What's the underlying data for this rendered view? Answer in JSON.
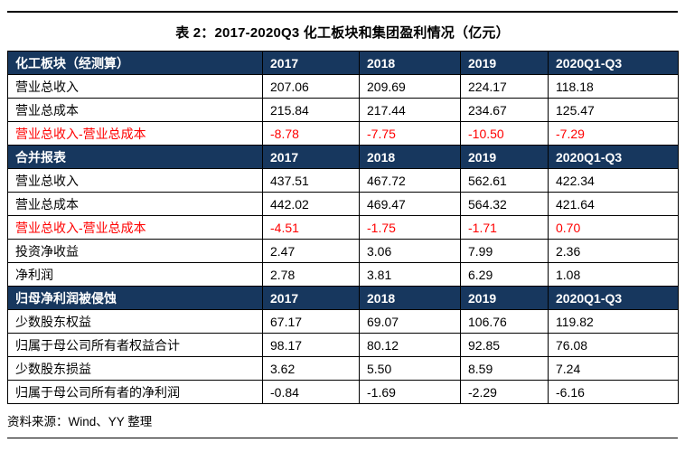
{
  "page": {
    "title": "表 2：2017-2020Q3 化工板块和集团盈利情况（亿元）",
    "source_note": "资料来源：Wind、YY 整理"
  },
  "colors": {
    "section_header_bg": "#17375e",
    "section_header_text": "#ffffff",
    "negative_highlight_text": "#ff0000",
    "grid_border": "#000000"
  },
  "table": {
    "year_columns": [
      "2017",
      "2018",
      "2019",
      "2020Q1-Q3"
    ],
    "sections": [
      {
        "header": "化工板块（经测算）",
        "rows": [
          {
            "label": "营业总收入",
            "values": [
              "207.06",
              "209.69",
              "224.17",
              "118.18"
            ],
            "red": false
          },
          {
            "label": "营业总成本",
            "values": [
              "215.84",
              "217.44",
              "234.67",
              "125.47"
            ],
            "red": false
          },
          {
            "label": "营业总收入-营业总成本",
            "values": [
              "-8.78",
              "-7.75",
              "-10.50",
              "-7.29"
            ],
            "red": true
          }
        ]
      },
      {
        "header": "合并报表",
        "rows": [
          {
            "label": "营业总收入",
            "values": [
              "437.51",
              "467.72",
              "562.61",
              "422.34"
            ],
            "red": false
          },
          {
            "label": "营业总成本",
            "values": [
              "442.02",
              "469.47",
              "564.32",
              "421.64"
            ],
            "red": false
          },
          {
            "label": "营业总收入-营业总成本",
            "values": [
              "-4.51",
              "-1.75",
              "-1.71",
              "0.70"
            ],
            "red": true
          },
          {
            "label": "投资净收益",
            "values": [
              "2.47",
              "3.06",
              "7.99",
              "2.36"
            ],
            "red": false
          },
          {
            "label": "净利润",
            "values": [
              "2.78",
              "3.81",
              "6.29",
              "1.08"
            ],
            "red": false
          }
        ]
      },
      {
        "header": "归母净利润被侵蚀",
        "rows": [
          {
            "label": "少数股东权益",
            "values": [
              "67.17",
              "69.07",
              "106.76",
              "119.82"
            ],
            "red": false
          },
          {
            "label": "归属于母公司所有者权益合计",
            "values": [
              "98.17",
              "80.12",
              "92.85",
              "76.08"
            ],
            "red": false
          },
          {
            "label": "少数股东损益",
            "values": [
              "3.62",
              "5.50",
              "8.59",
              "7.24"
            ],
            "red": false
          },
          {
            "label": "归属于母公司所有者的净利润",
            "values": [
              "-0.84",
              "-1.69",
              "-2.29",
              "-6.16"
            ],
            "red": false
          }
        ]
      }
    ]
  }
}
